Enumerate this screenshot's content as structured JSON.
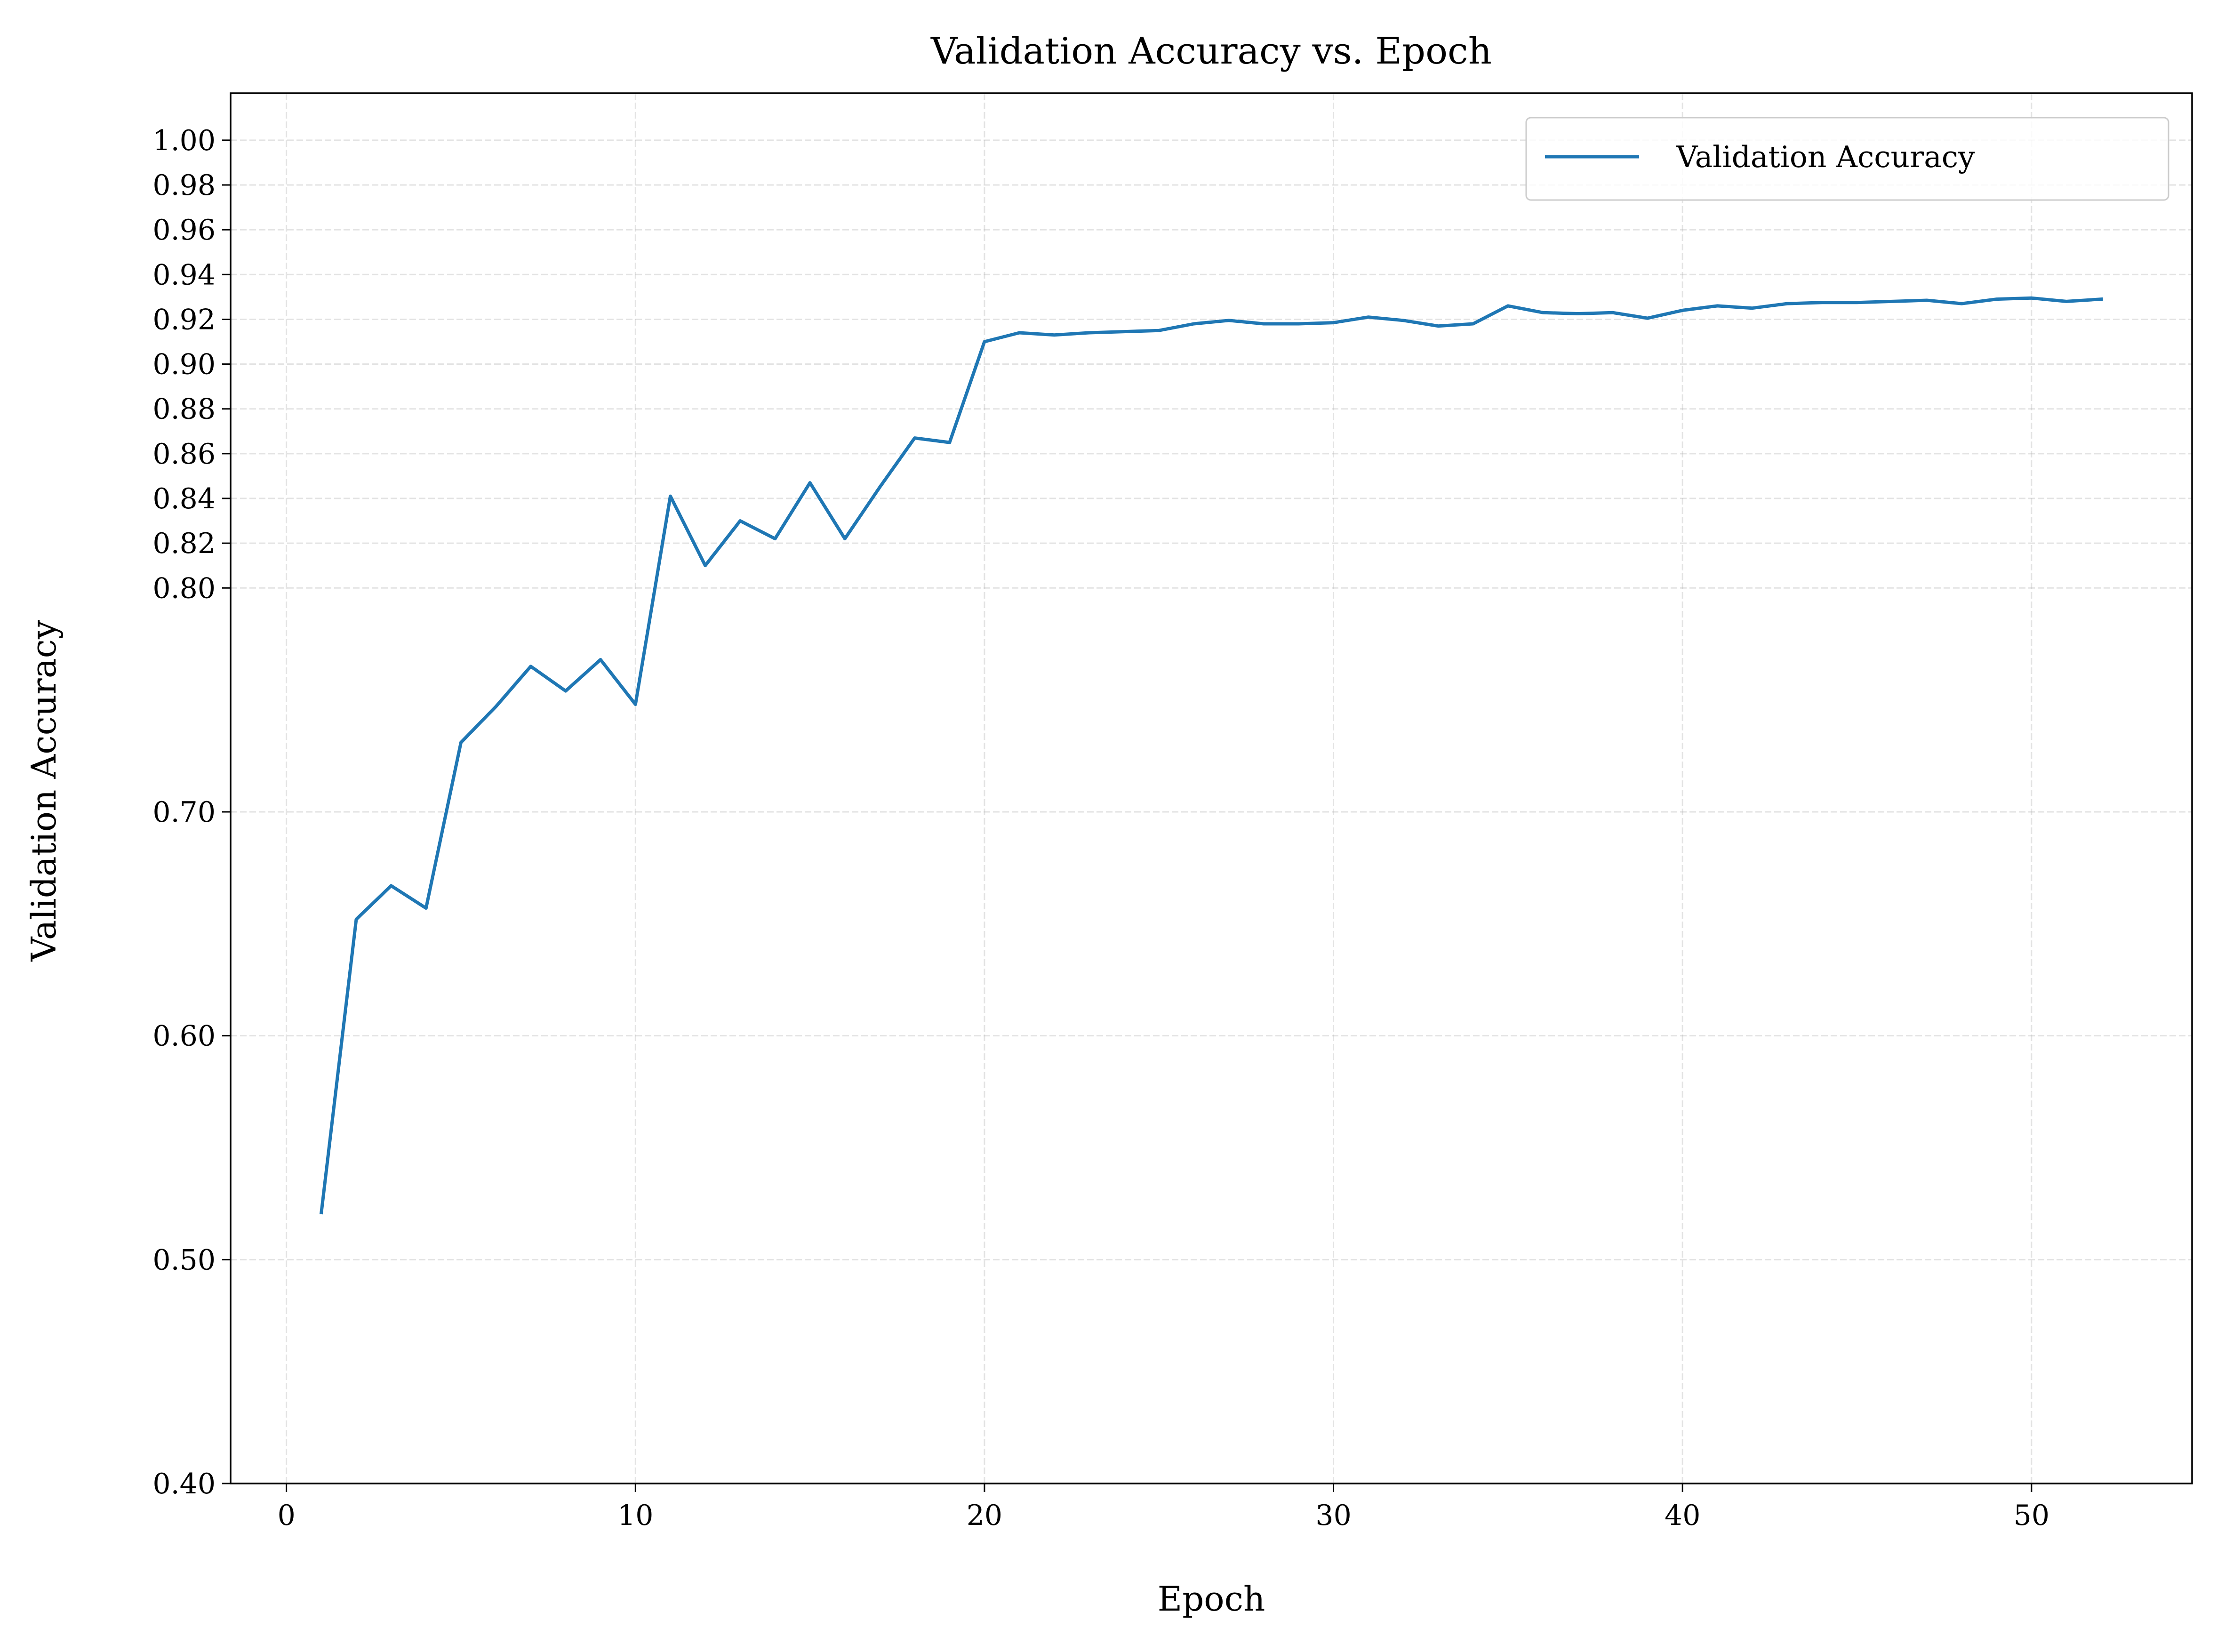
{
  "chart_data": {
    "type": "line",
    "title": "Validation Accuracy vs. Epoch",
    "xlabel": "Epoch",
    "ylabel": "Validation Accuracy",
    "xlim": [
      -1.6,
      54.6
    ],
    "ylim": [
      0.4,
      1.021
    ],
    "xticks": [
      0,
      10,
      20,
      30,
      40,
      50
    ],
    "yticks": [
      0.4,
      0.5,
      0.6,
      0.7,
      0.8,
      0.82,
      0.84,
      0.86,
      0.88,
      0.9,
      0.92,
      0.94,
      0.96,
      0.98,
      1.0
    ],
    "ytick_labels": [
      "0.40",
      "0.50",
      "0.60",
      "0.70",
      "0.80",
      "0.82",
      "0.84",
      "0.86",
      "0.88",
      "0.90",
      "0.92",
      "0.94",
      "0.96",
      "0.98",
      "1.00"
    ],
    "grid": true,
    "legend_position": "top-right",
    "series": [
      {
        "name": "Validation Accuracy",
        "color": "#1f77b4",
        "x": [
          1,
          2,
          3,
          4,
          5,
          6,
          7,
          8,
          9,
          10,
          11,
          12,
          13,
          14,
          15,
          16,
          17,
          18,
          19,
          20,
          21,
          22,
          23,
          24,
          25,
          26,
          27,
          28,
          29,
          30,
          31,
          32,
          33,
          34,
          35,
          36,
          37,
          38,
          39,
          40,
          41,
          42,
          43,
          44,
          45,
          46,
          47,
          48,
          49,
          50,
          51,
          52
        ],
        "y": [
          0.521,
          0.652,
          0.667,
          0.657,
          0.731,
          0.747,
          0.765,
          0.754,
          0.768,
          0.748,
          0.841,
          0.81,
          0.83,
          0.822,
          0.847,
          0.822,
          0.845,
          0.867,
          0.865,
          0.91,
          0.914,
          0.913,
          0.914,
          0.9145,
          0.915,
          0.918,
          0.9195,
          0.918,
          0.918,
          0.9185,
          0.921,
          0.9195,
          0.917,
          0.918,
          0.926,
          0.923,
          0.9225,
          0.923,
          0.9205,
          0.924,
          0.926,
          0.925,
          0.927,
          0.9275,
          0.9275,
          0.928,
          0.9285,
          0.927,
          0.929,
          0.9295,
          0.928,
          0.929
        ]
      }
    ]
  }
}
